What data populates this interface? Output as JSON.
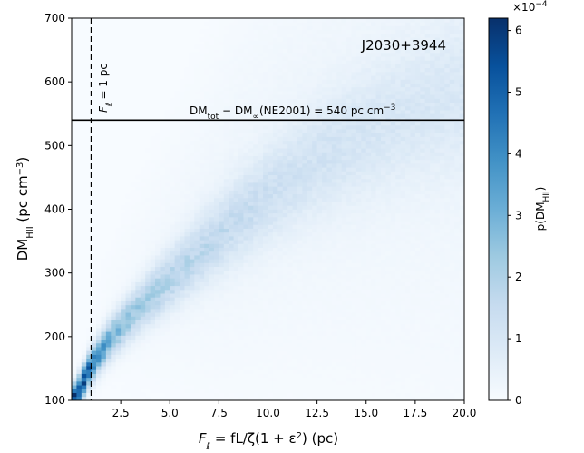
{
  "chart_data": {
    "type": "heatmap",
    "title": "",
    "xlabel": {
      "main": "F",
      "sub": "ℓ",
      "rest": " = fL/ζ(1 + ε",
      "sup": "2",
      "tail": ") (pc)"
    },
    "ylabel": {
      "main": "DM",
      "sub": "HII",
      "tail": " (pc cm",
      "sup": "−3",
      "end": ")"
    },
    "xlim": [
      0,
      20
    ],
    "ylim": [
      100,
      700
    ],
    "x_ticks": [
      2.5,
      5.0,
      7.5,
      10.0,
      12.5,
      15.0,
      17.5,
      20.0
    ],
    "x_tick_labels": [
      "2.5",
      "5.0",
      "7.5",
      "10.0",
      "12.5",
      "15.0",
      "17.5",
      "20.0"
    ],
    "y_ticks": [
      100,
      200,
      300,
      400,
      500,
      600,
      700
    ],
    "y_tick_labels": [
      "100",
      "200",
      "300",
      "400",
      "500",
      "600",
      "700"
    ],
    "source_name": "J2030+3944",
    "vline": {
      "x": 1.0,
      "style": "dashed",
      "label_main": "F",
      "label_sub": "ℓ",
      "label_rest": " = 1 pc"
    },
    "hline": {
      "y": 540,
      "style": "solid",
      "label_parts": [
        "DM",
        "tot",
        " − DM",
        "∞",
        "(NE2001) = 540 pc cm",
        "−3"
      ]
    },
    "density_ridge": {
      "x": [
        0.2,
        0.5,
        1.0,
        1.5,
        2.0,
        2.5,
        3.0,
        4.0,
        5.0,
        6.0,
        7.0,
        8.0,
        9.0,
        10.0,
        11.0,
        12.0,
        13.0,
        14.0,
        15.0,
        16.0,
        17.0,
        18.0,
        19.0,
        20.0
      ],
      "y": [
        105,
        125,
        155,
        178,
        198,
        215,
        232,
        262,
        290,
        318,
        345,
        372,
        398,
        422,
        444,
        465,
        484,
        502,
        518,
        533,
        547,
        560,
        572,
        583
      ],
      "peak_density": [
        6.1,
        5.6,
        4.6,
        3.6,
        3.0,
        2.6,
        2.3,
        2.0,
        1.8,
        1.6,
        1.45,
        1.3,
        1.2,
        1.1,
        1.0,
        0.95,
        0.9,
        0.85,
        0.8,
        0.75,
        0.72,
        0.7,
        0.68,
        0.66
      ]
    },
    "colorbar": {
      "label_main": "p(DM",
      "label_sub": "HII",
      "label_end": ")",
      "range": [
        0,
        6.2
      ],
      "ticks": [
        0,
        1,
        2,
        3,
        4,
        5,
        6
      ],
      "tick_labels": [
        "0",
        "1",
        "2",
        "3",
        "4",
        "5",
        "6"
      ],
      "multiplier_base": "×10",
      "multiplier_exp": "−4",
      "cmap": "Blues",
      "color_low": "#f7fbff",
      "color_high": "#08306b"
    },
    "grid": false
  }
}
